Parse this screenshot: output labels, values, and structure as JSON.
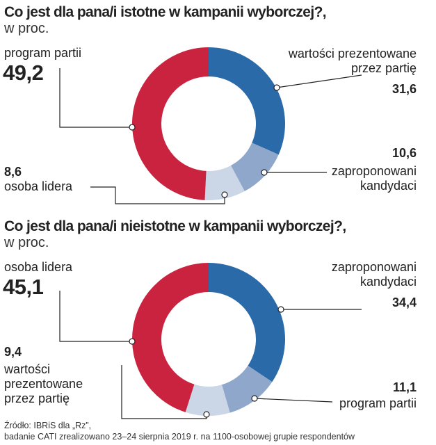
{
  "source": {
    "line1": "Źródło: IBRiS dla „Rz”,",
    "line2": "badanie CATI zrealizowano 23–24 sierpnia 2019 r. na 1100-osobowej grupie respondentów"
  },
  "chart_data": [
    {
      "type": "pie",
      "title": "Co jest dla pana/i istotne w kampanii wyborczej?,",
      "subtitle": "w proc.",
      "slices": [
        {
          "label": "wartości prezentowane przez partię",
          "value": 31.6,
          "display": "31,6",
          "color": "#2a6aa8"
        },
        {
          "label": "zaproponowani kandydaci",
          "value": 10.6,
          "display": "10,6",
          "color": "#8ea7cb"
        },
        {
          "label": "osoba lidera",
          "value": 8.6,
          "display": "8,6",
          "color": "#cbd7e6"
        },
        {
          "label": "program partii",
          "value": 49.2,
          "display": "49,2",
          "color": "#c9233f"
        }
      ]
    },
    {
      "type": "pie",
      "title": "Co jest dla pana/i nieistotne w kampanii wyborczej?,",
      "subtitle": "w proc.",
      "slices": [
        {
          "label": "zaproponowani kandydaci",
          "value": 34.4,
          "display": "34,4",
          "color": "#2a6aa8"
        },
        {
          "label": "program partii",
          "value": 11.1,
          "display": "11,1",
          "color": "#8ea7cb"
        },
        {
          "label": "wartości prezentowane przez partię",
          "value": 9.4,
          "display": "9,4",
          "color": "#cbd7e6"
        },
        {
          "label": "osoba lidera",
          "value": 45.1,
          "display": "45,1",
          "color": "#c9233f"
        }
      ]
    }
  ]
}
